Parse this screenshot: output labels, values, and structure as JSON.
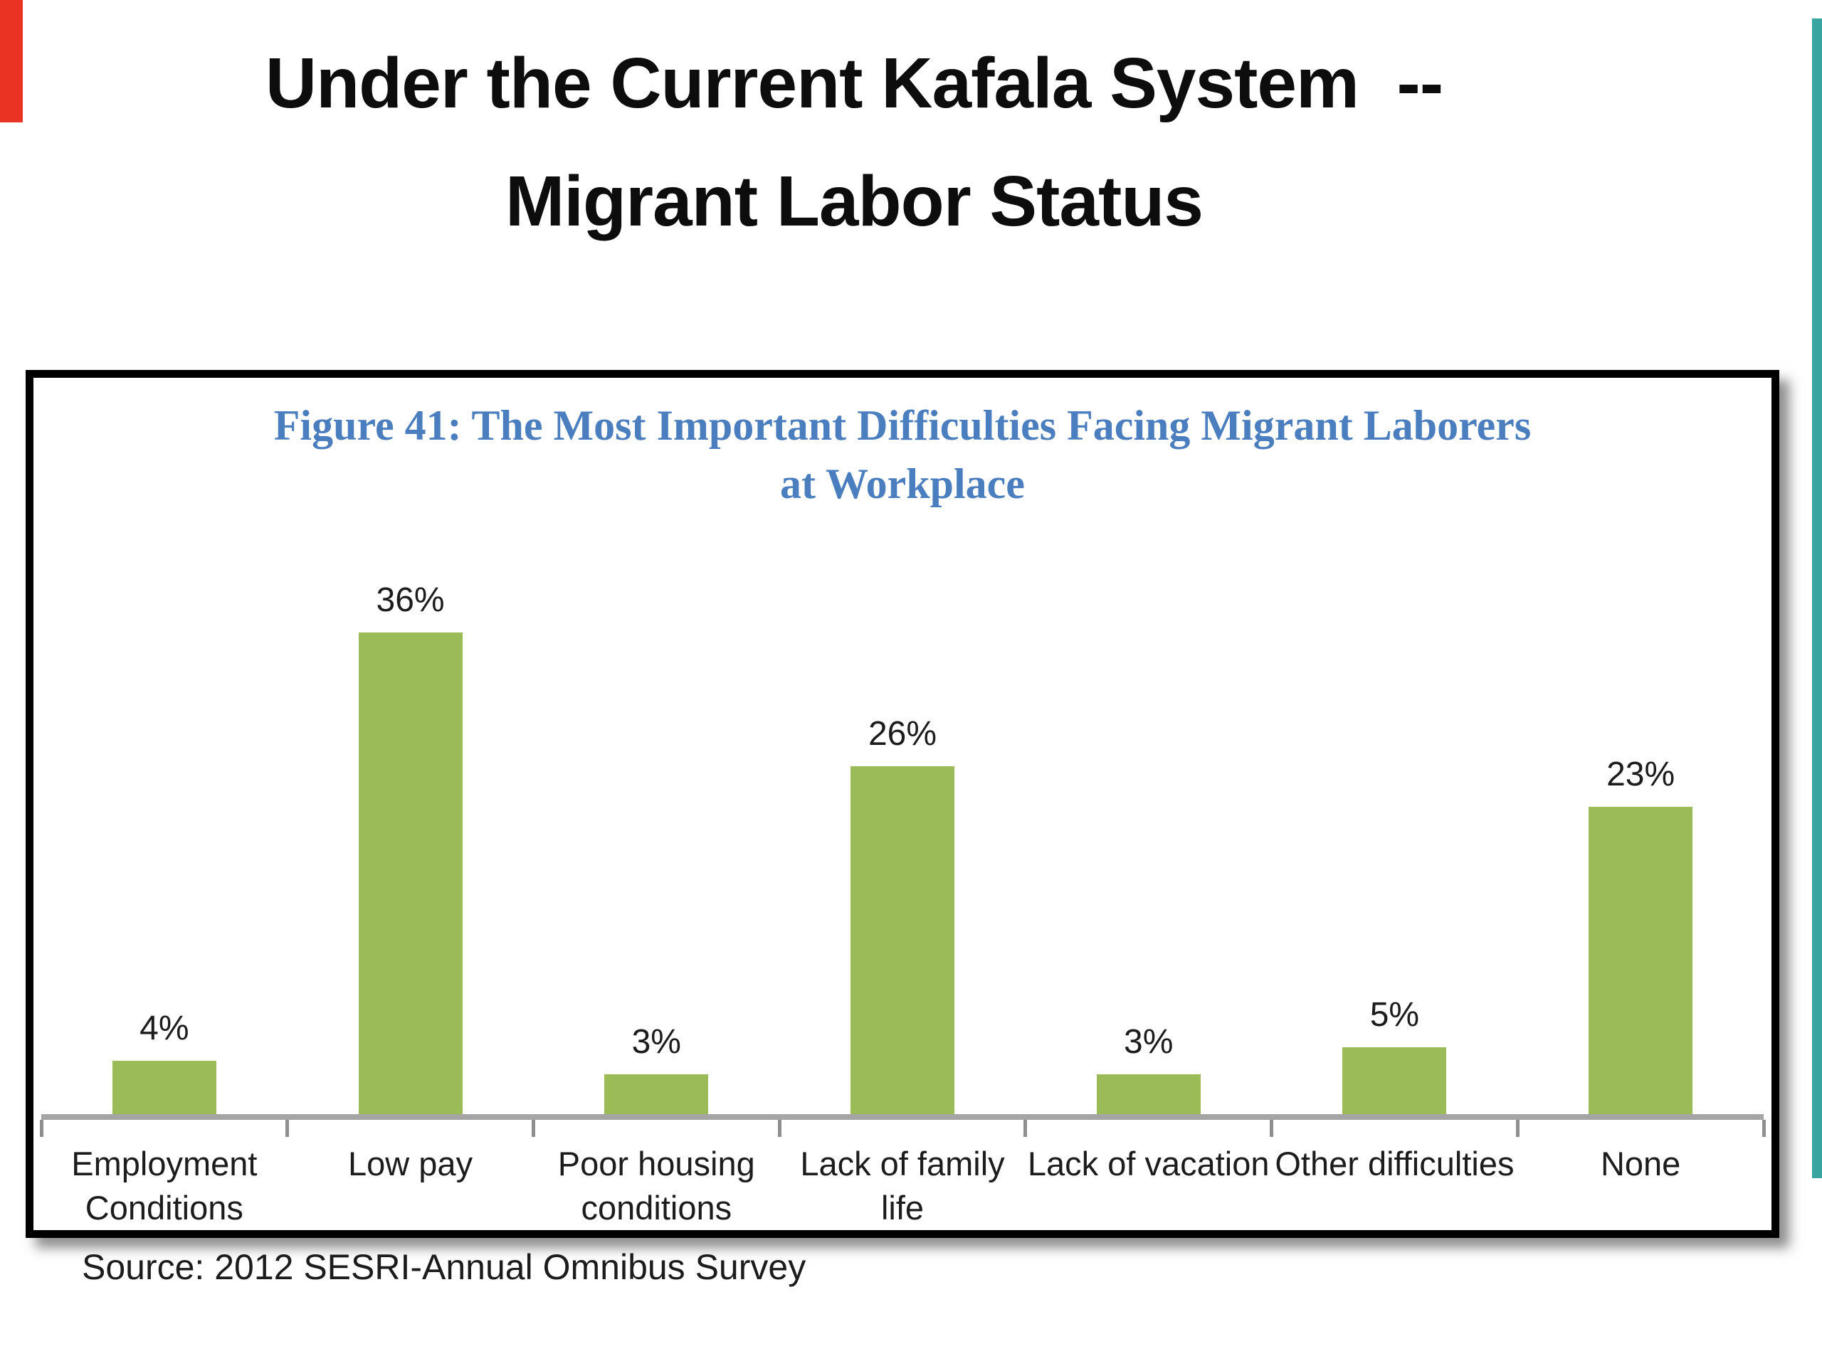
{
  "slide": {
    "title_line1": "Under the Current Kafala System  --",
    "title_line2": "Migrant Labor Status",
    "source": "Source: 2012 SESRI-Annual Omnibus Survey"
  },
  "figure": {
    "title_line1": "Figure 41: The Most Important Difficulties Facing Migrant Laborers",
    "title_line2": "at Workplace"
  },
  "chart_data": {
    "type": "bar",
    "title": "Figure 41: The Most Important Difficulties Facing Migrant Laborers at Workplace",
    "categories": [
      "Employment Conditions",
      "Low pay",
      "Poor housing conditions",
      "Lack of family life",
      "Lack of vacation",
      "Other difficulties",
      "None"
    ],
    "values": [
      4,
      36,
      3,
      26,
      3,
      5,
      23
    ],
    "value_labels": [
      "4%",
      "36%",
      "3%",
      "26%",
      "3%",
      "5%",
      "23%"
    ],
    "unit": "%",
    "ylim": [
      0,
      40
    ],
    "grid": false,
    "legend": false,
    "bar_color": "#9BBB59",
    "axis_color": "#A5A5A5",
    "tick_color": "#8F8F8F",
    "title_color": "#4A7EBE"
  },
  "decor": {
    "red_marker_color": "#EA3323",
    "teal_scrollbar_color": "#38A5A1"
  }
}
